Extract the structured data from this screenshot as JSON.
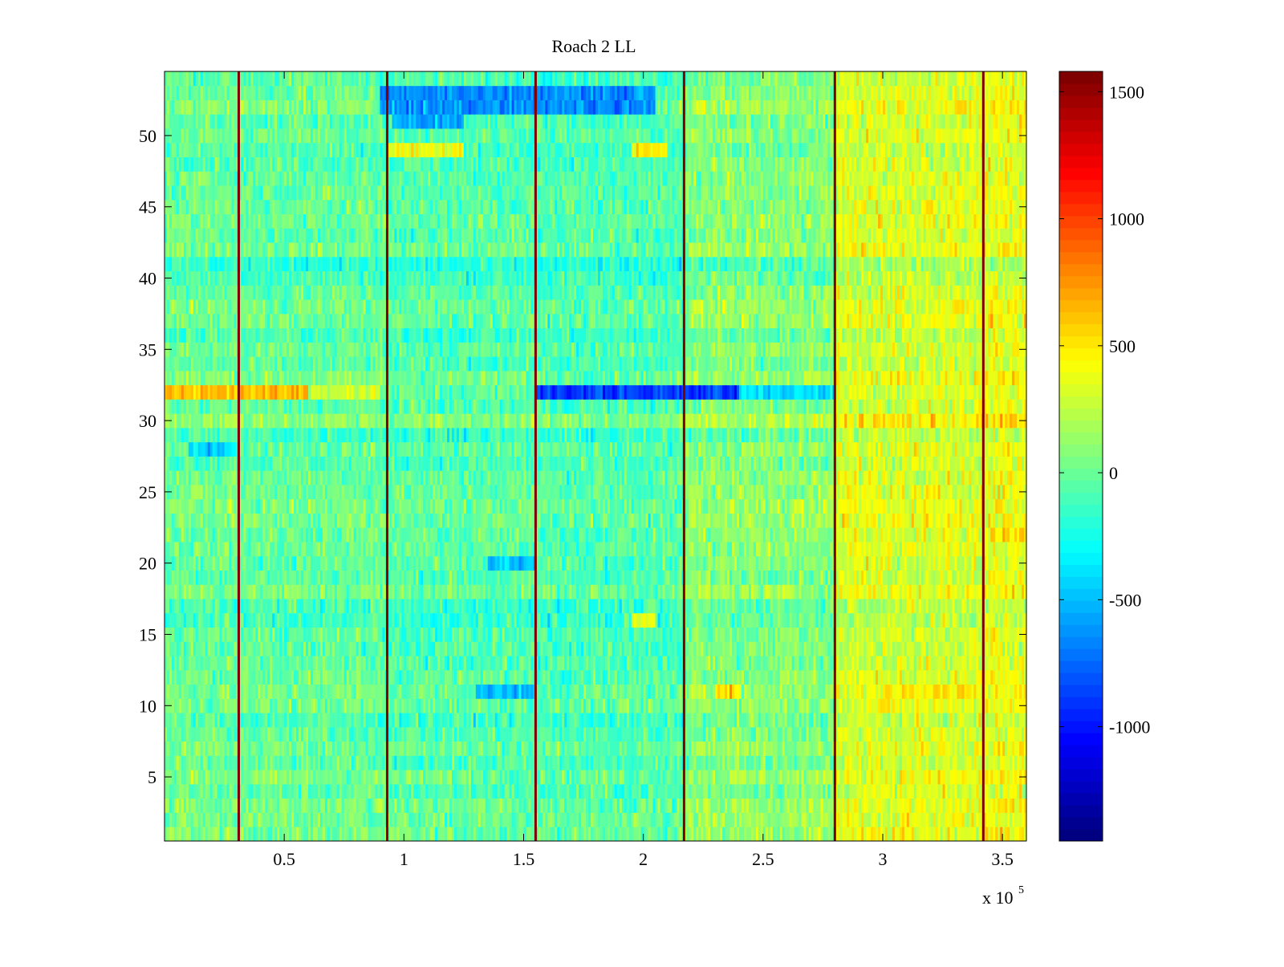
{
  "chart_data": {
    "type": "heatmap",
    "title": "Roach 2 LL",
    "xlabel": "",
    "ylabel": "",
    "xlim": [
      0,
      360000
    ],
    "ylim": [
      0.5,
      54.5
    ],
    "x_ticks": [
      {
        "value": 50000,
        "label": "0.5"
      },
      {
        "value": 100000,
        "label": "1"
      },
      {
        "value": 150000,
        "label": "1.5"
      },
      {
        "value": 200000,
        "label": "2"
      },
      {
        "value": 250000,
        "label": "2.5"
      },
      {
        "value": 300000,
        "label": "3"
      },
      {
        "value": 350000,
        "label": "3.5"
      }
    ],
    "x_multiplier": {
      "base": "x 10",
      "exponent": "5"
    },
    "y_ticks": [
      {
        "value": 5,
        "label": "5"
      },
      {
        "value": 10,
        "label": "10"
      },
      {
        "value": 15,
        "label": "15"
      },
      {
        "value": 20,
        "label": "20"
      },
      {
        "value": 25,
        "label": "25"
      },
      {
        "value": 30,
        "label": "30"
      },
      {
        "value": 35,
        "label": "35"
      },
      {
        "value": 40,
        "label": "40"
      },
      {
        "value": 45,
        "label": "45"
      },
      {
        "value": 50,
        "label": "50"
      }
    ],
    "rows": 54,
    "columns": 360,
    "colormap": "jet",
    "clim": [
      -1450,
      1580
    ],
    "colorbar": {
      "location": "right",
      "ticks": [
        {
          "value": 1500,
          "label": "1500"
        },
        {
          "value": 1000,
          "label": "1000"
        },
        {
          "value": 500,
          "label": "500"
        },
        {
          "value": 0,
          "label": "0"
        },
        {
          "value": -500,
          "label": "-500"
        },
        {
          "value": -1000,
          "label": "-1000"
        }
      ]
    },
    "vertical_lines": {
      "x": [
        31000,
        93000,
        155000,
        217000,
        280000,
        342000
      ],
      "value": 1580,
      "color": "#800000"
    },
    "segments": [
      {
        "start": 0,
        "end": 31000,
        "base": 0
      },
      {
        "start": 31000,
        "end": 93000,
        "base": -20
      },
      {
        "start": 93000,
        "end": 155000,
        "base": -60
      },
      {
        "start": 155000,
        "end": 217000,
        "base": -80
      },
      {
        "start": 217000,
        "end": 280000,
        "base": 80
      },
      {
        "start": 280000,
        "end": 342000,
        "base": 330
      },
      {
        "start": 342000,
        "end": 360000,
        "base": 380
      }
    ],
    "row_features": [
      {
        "row": 32,
        "x_range": [
          0,
          60000
        ],
        "mean": 650
      },
      {
        "row": 32,
        "x_range": [
          60000,
          90000
        ],
        "mean": 300
      },
      {
        "row": 32,
        "x_range": [
          155000,
          240000
        ],
        "mean": -900
      },
      {
        "row": 32,
        "x_range": [
          240000,
          280000
        ],
        "mean": -400
      },
      {
        "row": 53,
        "x_range": [
          90000,
          205000
        ],
        "mean": -650
      },
      {
        "row": 52,
        "x_range": [
          90000,
          205000
        ],
        "mean": -650
      },
      {
        "row": 51,
        "x_range": [
          95000,
          125000
        ],
        "mean": -550
      },
      {
        "row": 49,
        "x_range": [
          93000,
          125000
        ],
        "mean": 400
      },
      {
        "row": 49,
        "x_range": [
          195000,
          210000
        ],
        "mean": 450
      },
      {
        "row": 28,
        "x_range": [
          10000,
          30000
        ],
        "mean": -450
      },
      {
        "row": 20,
        "x_range": [
          135000,
          155000
        ],
        "mean": -500
      },
      {
        "row": 11,
        "x_range": [
          130000,
          155000
        ],
        "mean": -500
      },
      {
        "row": 11,
        "x_range": [
          300000,
          340000
        ],
        "mean": 500
      },
      {
        "row": 11,
        "x_range": [
          230000,
          240000
        ],
        "mean": 600
      },
      {
        "row": 16,
        "x_range": [
          195000,
          205000
        ],
        "mean": 400
      },
      {
        "row": 22,
        "x_range": [
          345000,
          360000
        ],
        "mean": 550
      }
    ]
  }
}
